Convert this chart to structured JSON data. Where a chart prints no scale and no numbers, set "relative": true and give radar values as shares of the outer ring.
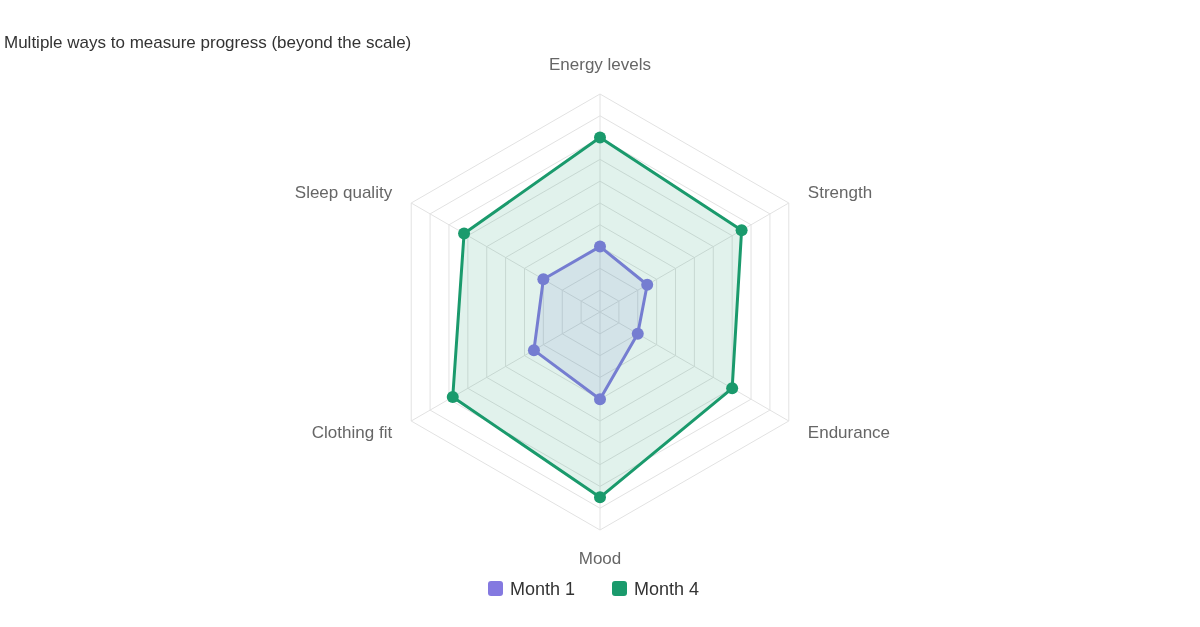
{
  "chart_data": {
    "type": "radar",
    "title": "Multiple ways to measure progress (beyond the scale)",
    "categories": [
      "Energy levels",
      "Strength",
      "Endurance",
      "Mood",
      "Clothing fit",
      "Sleep quality"
    ],
    "relative": true,
    "series": [
      {
        "name": "Month 1",
        "color": "#8479e0",
        "values": [
          0.3,
          0.25,
          0.2,
          0.4,
          0.35,
          0.3
        ]
      },
      {
        "name": "Month 4",
        "color": "#1a9a6c",
        "values": [
          0.8,
          0.75,
          0.7,
          0.85,
          0.78,
          0.72
        ]
      }
    ],
    "marker": "circle",
    "legend": "bottom"
  }
}
